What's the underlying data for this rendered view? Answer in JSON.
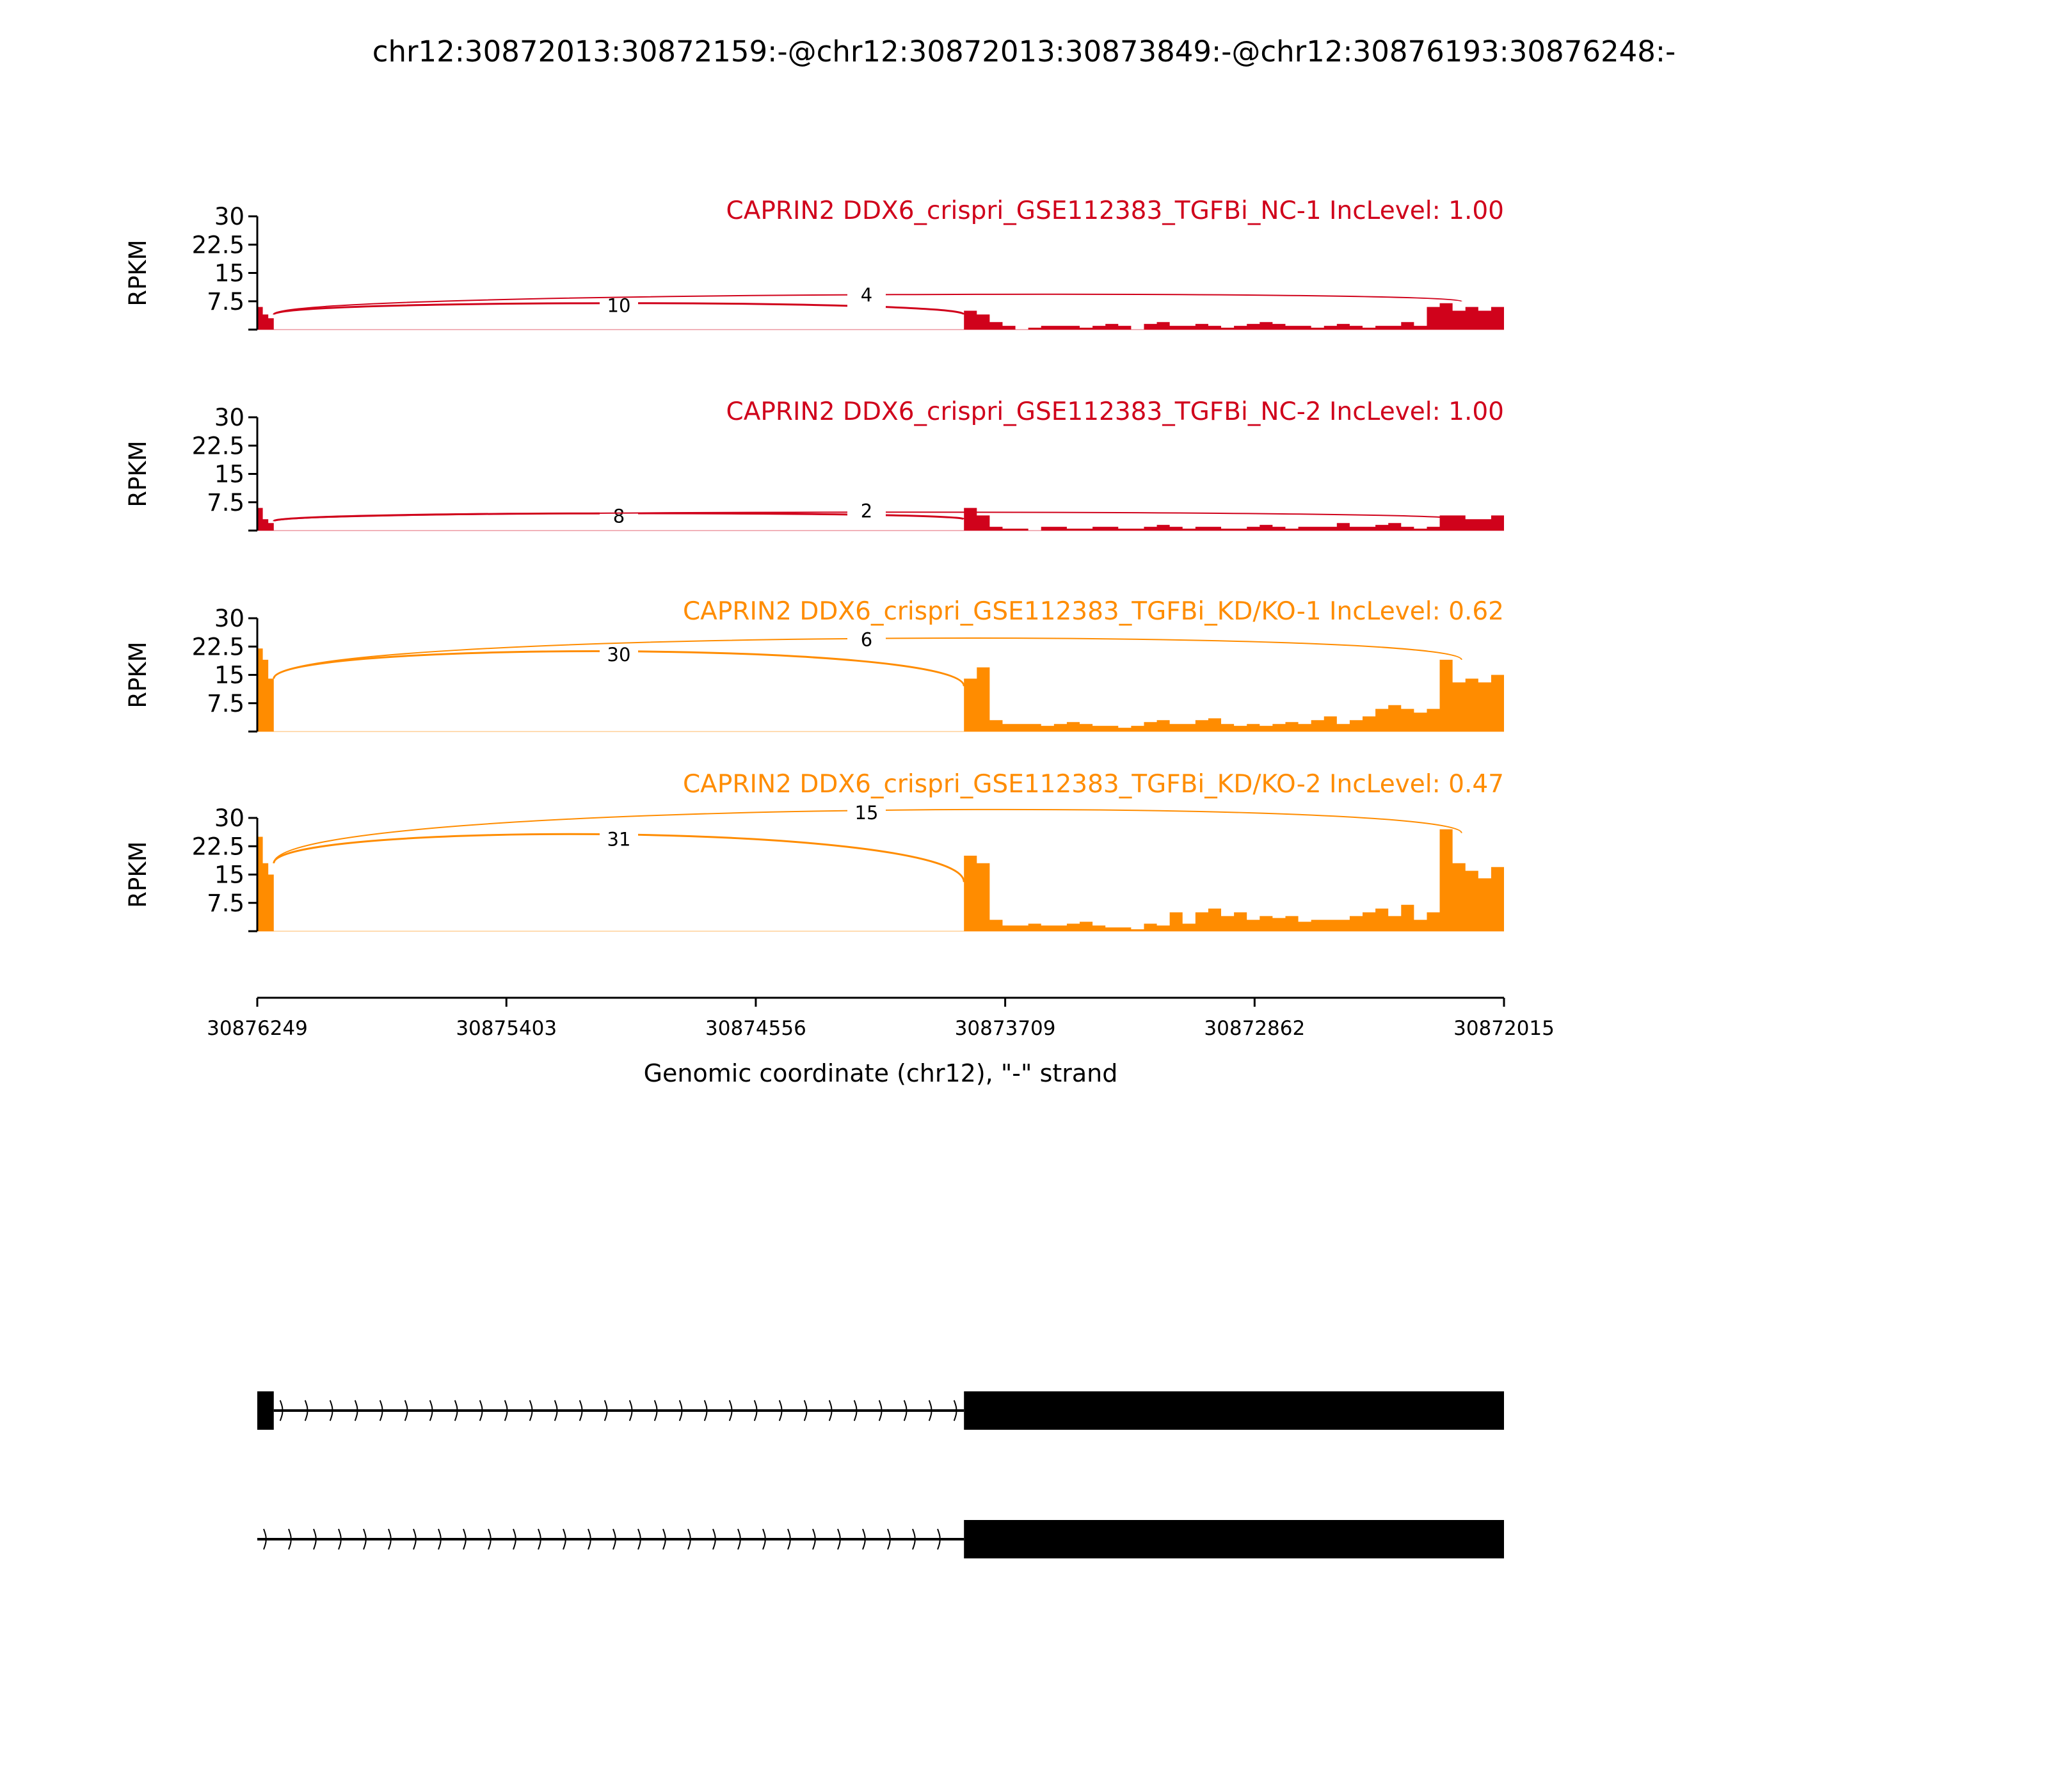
{
  "chart_data": {
    "type": "area",
    "title": "chr12:30872013:30872159:-@chr12:30872013:30873849:-@chr12:30876193:30876248:-",
    "xlabel": "Genomic coordinate (chr12), \"-\" strand",
    "ylabel": "RPKM",
    "xlim": [
      30876249,
      30872015
    ],
    "xticks": [
      "30876249",
      "30875403",
      "30874556",
      "30873709",
      "30872862",
      "30872015"
    ],
    "xtick_values": [
      30876249,
      30875403,
      30874556,
      30873709,
      30872862,
      30872015
    ],
    "ylim": [
      0,
      30
    ],
    "yticks": [
      "7.5",
      "15",
      "22.5",
      "30"
    ],
    "ytick_values": [
      7.5,
      15,
      22.5,
      30
    ],
    "exon1": [
      30876249,
      30876193
    ],
    "exon2": [
      30873849,
      30872015
    ],
    "inclusion_boundary": 30872159,
    "panels": [
      {
        "name": "CAPRIN2 DDX6_crispri_GSE112383_TGFBi_NC-1 IncLevel: 1.00",
        "color": "#d0021b",
        "exon1_coverage": [
          6,
          4,
          3
        ],
        "exon2_coverage": [
          5,
          4,
          2,
          1,
          0,
          0.5,
          1,
          1,
          1,
          0.5,
          1,
          1.5,
          1,
          0,
          1.5,
          2,
          1,
          1,
          1.5,
          1,
          0.5,
          1,
          1.5,
          2,
          1.5,
          1,
          1,
          0.5,
          1,
          1.5,
          1,
          0.5,
          1,
          1,
          2,
          1,
          6,
          7,
          5,
          6,
          5,
          6
        ],
        "junctions": [
          {
            "label": "10",
            "from": 30876193,
            "to": 30873849,
            "start": 4,
            "end": 4,
            "peak": 7
          },
          {
            "label": "4",
            "from": 30876193,
            "to": 30872159,
            "start": 4,
            "end": 7.5,
            "peak": 8.8
          }
        ]
      },
      {
        "name": "CAPRIN2 DDX6_crispri_GSE112383_TGFBi_NC-2 IncLevel: 1.00",
        "color": "#d0021b",
        "exon1_coverage": [
          6,
          3,
          2
        ],
        "exon2_coverage": [
          6,
          4,
          1,
          0.5,
          0.5,
          0,
          1,
          1,
          0.5,
          0.5,
          1,
          1,
          0.5,
          0.5,
          1,
          1.5,
          1,
          0.5,
          1,
          1,
          0.5,
          0.5,
          1,
          1.5,
          1,
          0.5,
          1,
          1,
          1,
          2,
          1,
          1,
          1.5,
          2,
          1,
          0.5,
          1,
          4,
          4,
          3,
          3,
          4
        ],
        "junctions": [
          {
            "label": "8",
            "from": 30876193,
            "to": 30873849,
            "start": 2.5,
            "end": 3,
            "peak": 4.5
          },
          {
            "label": "2",
            "from": 30876193,
            "to": 30872159,
            "start": 2.5,
            "end": 3,
            "peak": 4.8
          }
        ]
      },
      {
        "name": "CAPRIN2 DDX6_crispri_GSE112383_TGFBi_KD/KO-1 IncLevel: 0.62",
        "color": "#ff8c00",
        "exon1_coverage": [
          22,
          19,
          14
        ],
        "exon2_coverage": [
          14,
          17,
          3,
          2,
          2,
          2,
          1.5,
          2,
          2.5,
          2,
          1.5,
          1.5,
          1,
          1.5,
          2.5,
          3,
          2,
          2,
          3,
          3.5,
          2,
          1.5,
          2,
          1.5,
          2,
          2.5,
          2,
          3,
          4,
          2,
          3,
          4,
          6,
          7,
          6,
          5,
          6,
          19,
          13,
          14,
          13,
          15
        ],
        "junctions": [
          {
            "label": "30",
            "from": 30876193,
            "to": 30873849,
            "start": 14,
            "end": 12,
            "peak": 21
          },
          {
            "label": "6",
            "from": 30876193,
            "to": 30872159,
            "start": 14,
            "end": 19,
            "peak": 24
          }
        ]
      },
      {
        "name": "CAPRIN2 DDX6_crispri_GSE112383_TGFBi_KD/KO-2 IncLevel: 0.47",
        "color": "#ff8c00",
        "exon1_coverage": [
          25,
          18,
          15
        ],
        "exon2_coverage": [
          20,
          18,
          3,
          1.5,
          1.5,
          2,
          1.5,
          1.5,
          2,
          2.5,
          1.5,
          1,
          1,
          0.5,
          2,
          1.5,
          5,
          2,
          5,
          6,
          4,
          5,
          3,
          4,
          3.5,
          4,
          2.5,
          3,
          3,
          3,
          4,
          5,
          6,
          4,
          7,
          3,
          5,
          27,
          18,
          16,
          14,
          17
        ],
        "junctions": [
          {
            "label": "31",
            "from": 30876193,
            "to": 30873849,
            "start": 18,
            "end": 13,
            "peak": 25
          },
          {
            "label": "15",
            "from": 30876193,
            "to": 30872159,
            "start": 18,
            "end": 26,
            "peak": 31
          }
        ]
      }
    ],
    "transcripts": [
      {
        "exons": [
          [
            30876249,
            30876193
          ],
          [
            30873849,
            30872015
          ]
        ],
        "intron_start": 30876193
      },
      {
        "exons": [
          [
            30873849,
            30872015
          ]
        ],
        "intron_start": 30876249
      }
    ]
  }
}
